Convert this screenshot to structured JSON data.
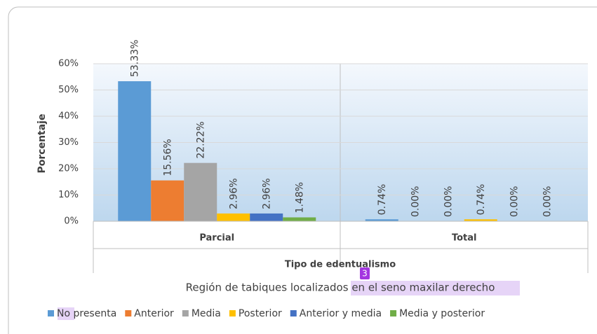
{
  "chart_data": {
    "type": "bar",
    "title": "Región de tabiques localizados en el seno maxilar derecho",
    "annotation": "3",
    "x_label": "Tipo de edentualismo",
    "y_label": "Porcentaje",
    "categories": [
      "Parcial",
      "Total"
    ],
    "series": [
      {
        "name": "No presenta",
        "color": "#5b9bd5",
        "values": [
          53.33,
          0.74
        ],
        "value_labels": [
          "53.33%",
          "0.74%"
        ]
      },
      {
        "name": "Anterior",
        "color": "#ed7d31",
        "values": [
          15.56,
          0
        ],
        "value_labels": [
          "15.56%",
          "0.00%"
        ]
      },
      {
        "name": "Media",
        "color": "#a5a5a5",
        "values": [
          22.22,
          0
        ],
        "value_labels": [
          "22.22%",
          "0.00%"
        ]
      },
      {
        "name": "Posterior",
        "color": "#ffc000",
        "values": [
          2.96,
          0.74
        ],
        "value_labels": [
          "2.96%",
          "0.74%"
        ]
      },
      {
        "name": "Anterior y media",
        "color": "#4472c4",
        "values": [
          2.96,
          0
        ],
        "value_labels": [
          "2.96%",
          "0.00%"
        ]
      },
      {
        "name": "Media y posterior",
        "color": "#70ad47",
        "values": [
          1.48,
          0
        ],
        "value_labels": [
          "1.48%",
          "0.00%"
        ]
      }
    ],
    "ylim": [
      0,
      60
    ],
    "yticks": [
      {
        "value": 0,
        "label": "0%"
      },
      {
        "value": 10,
        "label": "10%"
      },
      {
        "value": 20,
        "label": "20%"
      },
      {
        "value": 30,
        "label": "30%"
      },
      {
        "value": 40,
        "label": "40%"
      },
      {
        "value": 50,
        "label": "50%"
      },
      {
        "value": 60,
        "label": "60%"
      }
    ],
    "grid": true,
    "legend": "bottom"
  }
}
